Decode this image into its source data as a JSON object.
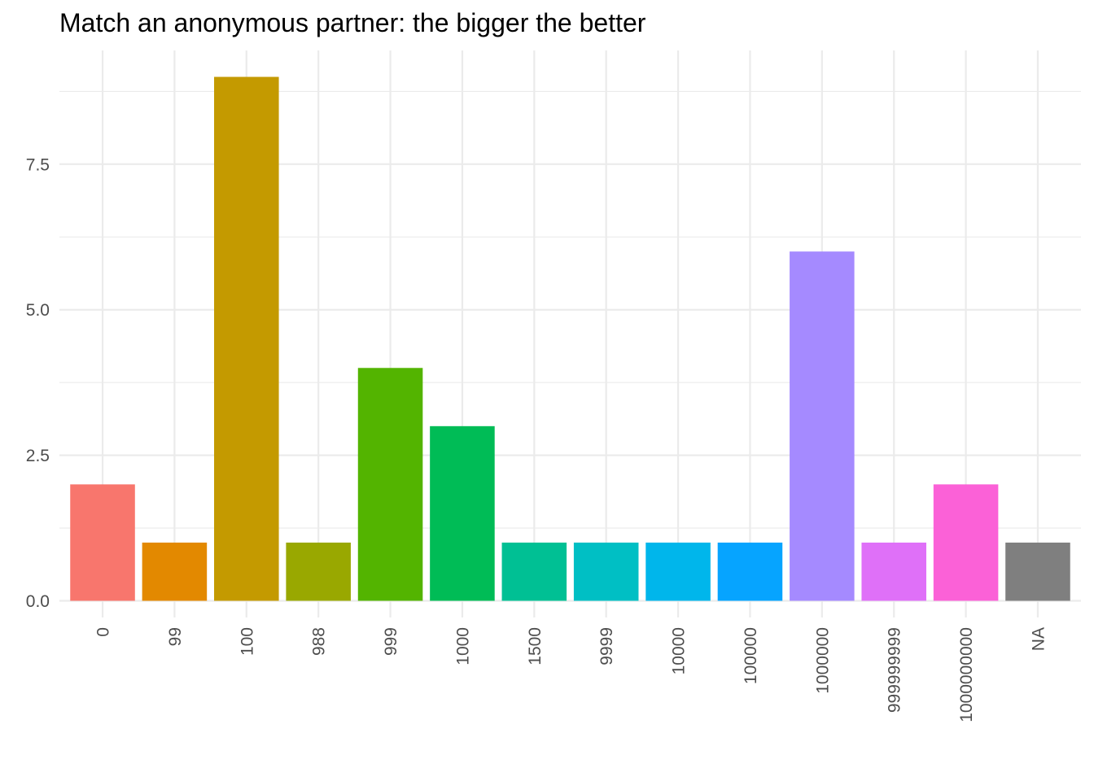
{
  "chart_data": {
    "type": "bar",
    "title": "Match an anonymous partner: the bigger the better",
    "xlabel": "",
    "ylabel": "",
    "categories": [
      "0",
      "99",
      "100",
      "988",
      "999",
      "1000",
      "1500",
      "9999",
      "10000",
      "100000",
      "1000000",
      "999999999",
      "1000000000",
      "NA"
    ],
    "values": [
      2,
      1,
      9,
      1,
      4,
      3,
      1,
      1,
      1,
      1,
      6,
      1,
      2,
      1
    ],
    "colors": [
      "#F8766D",
      "#E38900",
      "#C49A00",
      "#99A800",
      "#53B400",
      "#00BC56",
      "#00C094",
      "#00BFC4",
      "#00B6EB",
      "#06A4FF",
      "#A58AFF",
      "#DF70F8",
      "#FB61D7",
      "#7F7F7F"
    ],
    "ylim": [
      0,
      9
    ],
    "yticks": [
      0,
      2.5,
      5,
      7.5
    ],
    "ytick_labels": [
      "0.0",
      "2.5",
      "5.0",
      "7.5"
    ],
    "grid": true,
    "legend": "none"
  }
}
